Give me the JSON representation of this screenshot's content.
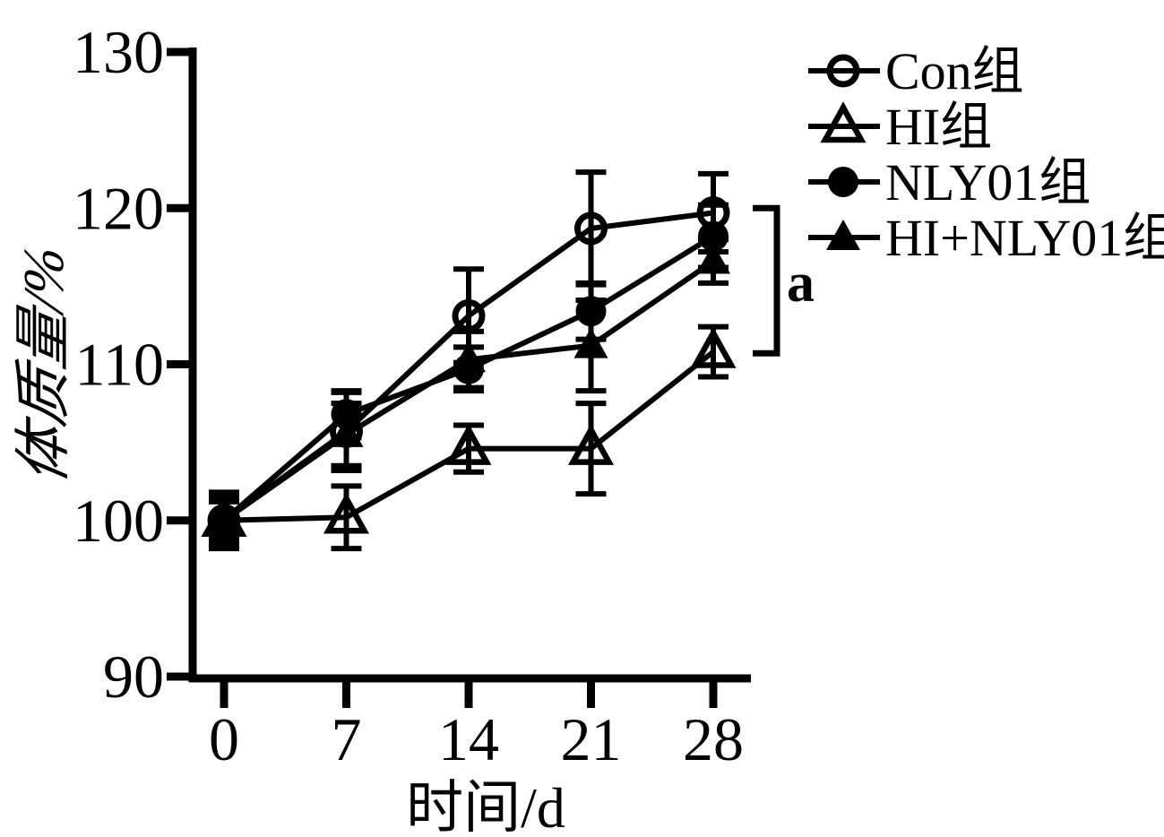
{
  "chart_data": {
    "type": "line",
    "title": "",
    "xlabel": "时间/d",
    "ylabel": "体质量/%",
    "x": [
      0,
      7,
      14,
      21,
      28
    ],
    "xticks": [
      "0",
      "7",
      "14",
      "21",
      "28"
    ],
    "yticks": [
      "90",
      "100",
      "110",
      "120",
      "130"
    ],
    "ytick_values": [
      90,
      100,
      110,
      120,
      130
    ],
    "ylim": [
      90,
      130
    ],
    "xlim": [
      0,
      28
    ],
    "grid": false,
    "legend_position": "top-right",
    "series": [
      {
        "name": "Con组",
        "marker": "open-circle",
        "values": [
          100.0,
          105.7,
          113.1,
          118.7,
          119.7
        ],
        "errors": [
          1.5,
          2.5,
          3.0,
          3.6,
          2.5
        ]
      },
      {
        "name": "HI组",
        "marker": "open-triangle",
        "values": [
          100.0,
          100.2,
          104.6,
          104.6,
          110.8
        ],
        "errors": [
          1.8,
          2.0,
          1.5,
          2.9,
          1.6
        ]
      },
      {
        "name": "NLY01组",
        "marker": "filled-circle",
        "values": [
          100.0,
          106.8,
          109.7,
          113.4,
          118.2
        ],
        "errors": [
          1.2,
          1.5,
          1.4,
          1.8,
          2.0
        ]
      },
      {
        "name": "HI+NLY01组",
        "marker": "filled-triangle",
        "values": [
          100.0,
          105.5,
          110.3,
          111.2,
          116.6
        ],
        "errors": [
          1.5,
          2.0,
          1.8,
          2.9,
          1.4
        ]
      }
    ],
    "annotation": {
      "label": "a",
      "type": "bracket",
      "value_span": [
        110.7,
        120.0
      ],
      "at_x": 28
    },
    "colors": {
      "foreground": "#000000",
      "background": "#ffffff"
    }
  }
}
